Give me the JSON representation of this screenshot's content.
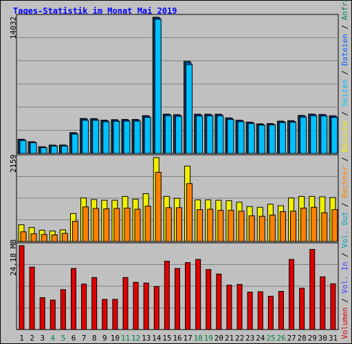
{
  "title": "Tages-Statistik im Monat Mai 2019",
  "panels": [
    {
      "max_label": "14032"
    },
    {
      "max_label": "2159"
    },
    {
      "max_label": "24.18 MB"
    }
  ],
  "legend": [
    {
      "text": "Volumen",
      "color": "#e00000"
    },
    {
      "text": " / ",
      "color": "#000000"
    },
    {
      "text": "Vol. In",
      "color": "#4040ff"
    },
    {
      "text": " / ",
      "color": "#000000"
    },
    {
      "text": "Vol. Out",
      "color": "#00a0c0"
    },
    {
      "text": " / ",
      "color": "#000000"
    },
    {
      "text": "Rechner",
      "color": "#ff8000"
    },
    {
      "text": " / ",
      "color": "#000000"
    },
    {
      "text": "Besuche",
      "color": "#f0f000"
    },
    {
      "text": " / ",
      "color": "#000000"
    },
    {
      "text": "Seiten",
      "color": "#00c0ff"
    },
    {
      "text": " / ",
      "color": "#000000"
    },
    {
      "text": "Dateien",
      "color": "#0060ff"
    },
    {
      "text": " / ",
      "color": "#000000"
    },
    {
      "text": "Anfragen",
      "color": "#008060"
    }
  ],
  "chart_data": [
    {
      "type": "bar",
      "panel": "Anfragen / Dateien / Seiten",
      "categories": [
        "1",
        "2",
        "3",
        "4",
        "5",
        "6",
        "7",
        "8",
        "9",
        "10",
        "11",
        "12",
        "13",
        "14",
        "15",
        "16",
        "17",
        "18",
        "19",
        "20",
        "21",
        "22",
        "23",
        "24",
        "25",
        "26",
        "27",
        "28",
        "29",
        "30",
        "31"
      ],
      "series": [
        {
          "name": "Anfragen",
          "color": "#008060",
          "values": [
            1460,
            1210,
            690,
            860,
            870,
            2140,
            3600,
            3590,
            3430,
            3480,
            3500,
            3500,
            3890,
            14032,
            4050,
            3990,
            9500,
            4040,
            4040,
            4040,
            3660,
            3420,
            3230,
            3050,
            3080,
            3330,
            3370,
            3910,
            4050,
            4020,
            3880
          ]
        },
        {
          "name": "Dateien",
          "color": "#0060ff",
          "values": [
            1420,
            1180,
            660,
            830,
            840,
            2090,
            3540,
            3530,
            3370,
            3420,
            3440,
            3440,
            3840,
            13950,
            4000,
            3940,
            9350,
            3980,
            3990,
            3990,
            3610,
            3370,
            3180,
            3000,
            3030,
            3280,
            3320,
            3860,
            4000,
            3970,
            3830
          ]
        },
        {
          "name": "Seiten",
          "color": "#00c0ff",
          "values": [
            1330,
            1100,
            590,
            760,
            770,
            1990,
            3420,
            3410,
            3260,
            3310,
            3330,
            3330,
            3720,
            13820,
            3880,
            3820,
            9150,
            3860,
            3870,
            3870,
            3500,
            3260,
            3080,
            2910,
            2940,
            3180,
            3220,
            3740,
            3880,
            3850,
            3710
          ]
        }
      ]
    },
    {
      "type": "bar",
      "panel": "Besuche / Rechner",
      "categories": [
        "1",
        "2",
        "3",
        "4",
        "5",
        "6",
        "7",
        "8",
        "9",
        "10",
        "11",
        "12",
        "13",
        "14",
        "15",
        "16",
        "17",
        "18",
        "19",
        "20",
        "21",
        "22",
        "23",
        "24",
        "25",
        "26",
        "27",
        "28",
        "29",
        "30",
        "31"
      ],
      "series": [
        {
          "name": "Besuche",
          "color": "#f0f000",
          "values": [
            430,
            360,
            290,
            270,
            300,
            720,
            1120,
            1080,
            1060,
            1060,
            1160,
            1090,
            1230,
            2159,
            1160,
            1110,
            1940,
            1070,
            1070,
            1060,
            1050,
            1010,
            900,
            880,
            960,
            920,
            1120,
            1160,
            1160,
            1150,
            1130
          ]
        },
        {
          "name": "Rechner",
          "color": "#ff8000",
          "values": [
            250,
            200,
            180,
            170,
            210,
            520,
            890,
            850,
            840,
            850,
            860,
            830,
            910,
            1780,
            870,
            870,
            1490,
            820,
            830,
            800,
            800,
            780,
            660,
            650,
            680,
            770,
            780,
            860,
            880,
            740,
            820
          ]
        }
      ]
    },
    {
      "type": "bar",
      "panel": "Volumen",
      "unit": "MB",
      "categories": [
        "1",
        "2",
        "3",
        "4",
        "5",
        "6",
        "7",
        "8",
        "9",
        "10",
        "11",
        "12",
        "13",
        "14",
        "15",
        "16",
        "17",
        "18",
        "19",
        "20",
        "21",
        "22",
        "23",
        "24",
        "25",
        "26",
        "27",
        "28",
        "29",
        "30",
        "31"
      ],
      "series": [
        {
          "name": "Volumen",
          "color": "#e00000",
          "values": [
            24.18,
            18.0,
            9.2,
            8.5,
            11.5,
            17.6,
            13.1,
            15.0,
            8.7,
            8.7,
            15.0,
            13.6,
            13.4,
            12.4,
            19.7,
            17.6,
            19.3,
            20.2,
            17.3,
            16.0,
            12.8,
            13.0,
            10.8,
            10.9,
            9.6,
            11.0,
            20.2,
            11.9,
            23.1,
            15.2,
            13.2
          ]
        }
      ]
    }
  ],
  "weekend_days": [
    4,
    5,
    11,
    12,
    18,
    19,
    25,
    26
  ],
  "colors": {
    "weekday_label": "#000000",
    "weekend_label": "#008040",
    "grid": "#808080",
    "panel_bg": "#c0c0c0"
  }
}
